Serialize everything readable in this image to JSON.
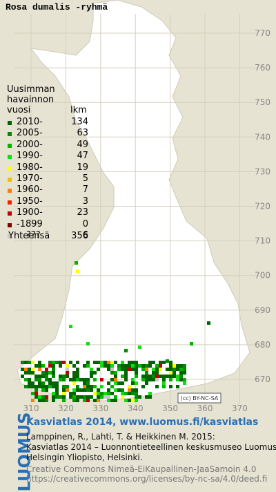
{
  "title": "Rosa dumalis -ryhmä",
  "legend": {
    "heading": [
      "Uusimman",
      "havainnon",
      "vuosi"
    ],
    "count_heading": "lkm",
    "rows": [
      {
        "label": "2010-",
        "count": 134,
        "color": "#006400"
      },
      {
        "label": "2005-",
        "count": 63,
        "color": "#008c00"
      },
      {
        "label": "2000-",
        "count": 49,
        "color": "#00b400"
      },
      {
        "label": "1990-",
        "count": 47,
        "color": "#10e010"
      },
      {
        "label": "1980-",
        "count": 19,
        "color": "#ffff00"
      },
      {
        "label": "1970-",
        "count": 5,
        "color": "#f0c000"
      },
      {
        "label": "1960-",
        "count": 7,
        "color": "#ff8000"
      },
      {
        "label": "1950-",
        "count": 3,
        "color": "#ff2000"
      },
      {
        "label": "1900-",
        "count": 23,
        "color": "#c00000"
      },
      {
        "label": "-1899",
        "count": 0,
        "color": "#800000"
      },
      {
        "label": "???",
        "count": 6,
        "color": "#c8c8c8"
      }
    ],
    "total": {
      "label": "Yhteensä",
      "count": 356
    }
  },
  "map": {
    "x_ticks": [
      310,
      320,
      330,
      340,
      350,
      360,
      370
    ],
    "y_ticks": [
      670,
      680,
      690,
      700,
      710,
      720,
      730,
      740,
      750,
      760,
      770
    ],
    "license_badge": "(cc) BY-NC-SA"
  },
  "footer": {
    "logo": "LUOMUS",
    "heading": "Kasviatlas 2014, www.luomus.fi/kasviatlas",
    "citation": [
      "Lamppinen, R., Lahti, T. & Heikkinen M. 2015:",
      "Kasviatlas 2014 – Luonnontieteellinen keskusmuseo Luomus,",
      "Helsingin Yliopisto, Helsinki."
    ],
    "license": [
      "Creative Commons Nimeä-EiKaupallinen-JaaSamoin 4.0",
      "https://creativecommons.org/licenses/by-nc-sa/4.0/deed.fi"
    ]
  }
}
